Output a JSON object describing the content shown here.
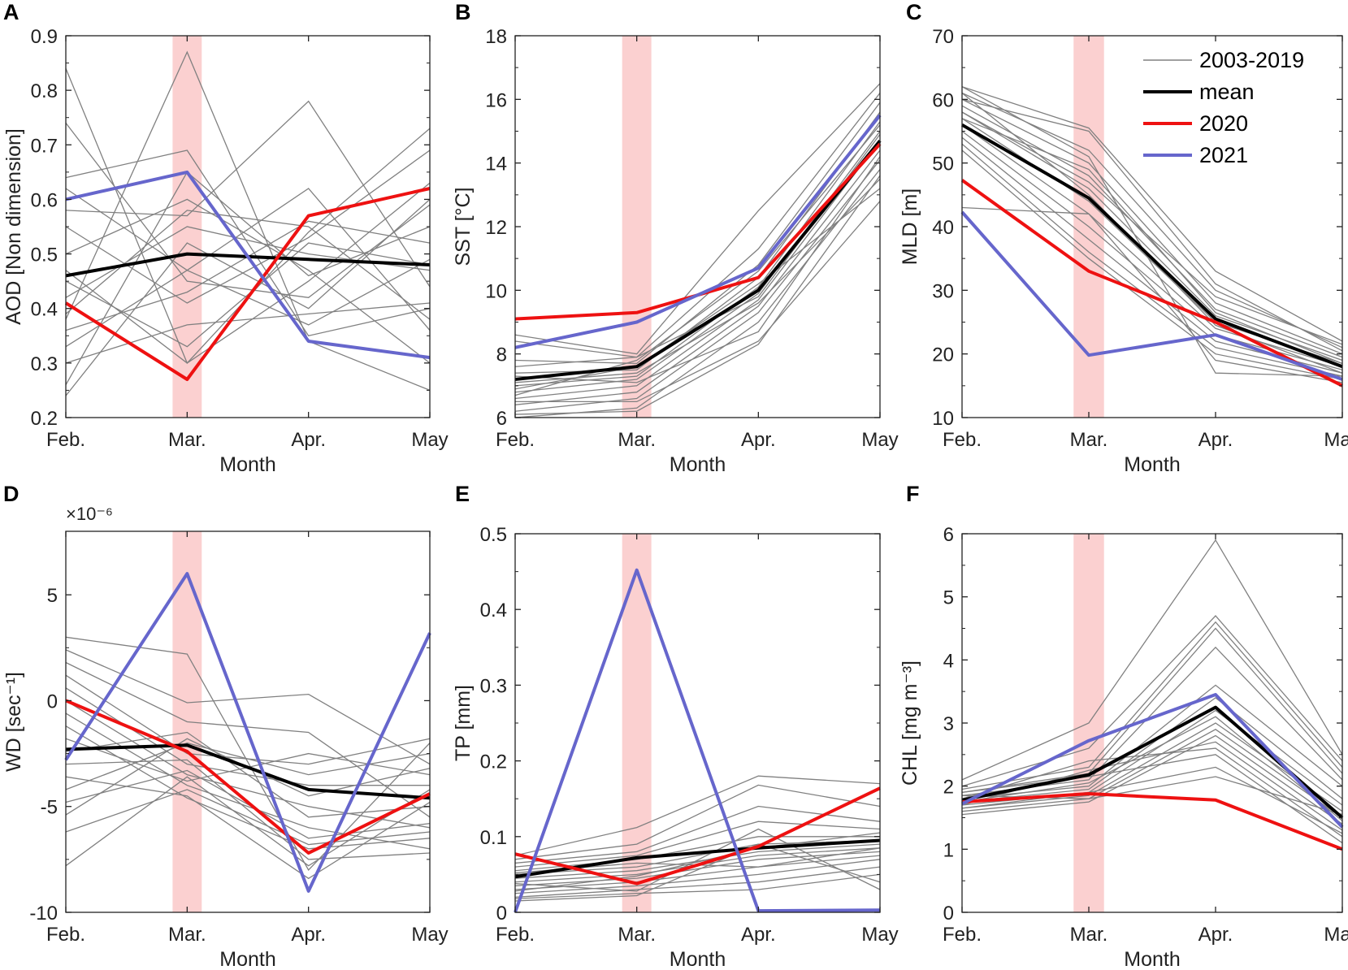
{
  "legend": {
    "items": [
      {
        "label": "2003-2019",
        "color": "#808080"
      },
      {
        "label": "mean",
        "color": "#000000"
      },
      {
        "label": "2020",
        "color": "#ee1111"
      },
      {
        "label": "2021",
        "color": "#6666cc"
      }
    ]
  },
  "colors": {
    "highlight": "#fbd0d0",
    "grey": "#808080",
    "mean": "#000000",
    "y2020": "#ee1111",
    "y2021": "#6666cc"
  },
  "chart_data": [
    {
      "type": "line",
      "panel": "A",
      "ylabel": "AOD [Non dimension]",
      "xlabel": "Month",
      "categories": [
        "Feb.",
        "Mar.",
        "Apr.",
        "May"
      ],
      "ylim": [
        0.2,
        0.9
      ],
      "yticks": [
        0.2,
        0.3,
        0.4,
        0.5,
        0.6,
        0.7,
        0.8,
        0.9
      ],
      "ytick_labels": [
        "0.2",
        "0.3",
        "0.4",
        "0.5",
        "0.6",
        "0.7",
        "0.8",
        "0.9"
      ],
      "highlight_category": "Mar.",
      "series": [
        {
          "name": "mean",
          "values": [
            0.46,
            0.5,
            0.49,
            0.48
          ]
        },
        {
          "name": "2020",
          "values": [
            0.41,
            0.27,
            0.57,
            0.62
          ]
        },
        {
          "name": "2021",
          "values": [
            0.6,
            0.65,
            0.34,
            0.31
          ]
        }
      ],
      "background_series": [
        [
          0.84,
          0.3,
          0.54,
          0.73
        ],
        [
          0.74,
          0.45,
          0.42,
          0.59
        ],
        [
          0.64,
          0.69,
          0.35,
          0.4
        ],
        [
          0.58,
          0.57,
          0.78,
          0.44
        ],
        [
          0.55,
          0.41,
          0.53,
          0.69
        ],
        [
          0.38,
          0.87,
          0.34,
          0.25
        ],
        [
          0.33,
          0.47,
          0.62,
          0.36
        ],
        [
          0.26,
          0.65,
          0.46,
          0.55
        ],
        [
          0.47,
          0.3,
          0.45,
          0.63
        ],
        [
          0.36,
          0.43,
          0.56,
          0.52
        ],
        [
          0.42,
          0.55,
          0.5,
          0.47
        ],
        [
          0.3,
          0.37,
          0.39,
          0.41
        ],
        [
          0.5,
          0.6,
          0.47,
          0.3
        ],
        [
          0.24,
          0.52,
          0.4,
          0.6
        ],
        [
          0.45,
          0.33,
          0.52,
          0.48
        ],
        [
          0.62,
          0.47,
          0.37,
          0.49
        ],
        [
          0.39,
          0.58,
          0.55,
          0.38
        ]
      ]
    },
    {
      "type": "line",
      "panel": "B",
      "ylabel": "SST [°C]",
      "xlabel": "Month",
      "categories": [
        "Feb.",
        "Mar.",
        "Apr.",
        "May"
      ],
      "ylim": [
        6,
        18
      ],
      "yticks": [
        6,
        8,
        10,
        12,
        14,
        16,
        18
      ],
      "ytick_labels": [
        "6",
        "8",
        "10",
        "12",
        "14",
        "16",
        "18"
      ],
      "highlight_category": "Mar.",
      "series": [
        {
          "name": "mean",
          "values": [
            7.2,
            7.6,
            10.0,
            14.7
          ]
        },
        {
          "name": "2020",
          "values": [
            9.1,
            9.3,
            10.4,
            14.6
          ]
        },
        {
          "name": "2021",
          "values": [
            8.2,
            9.0,
            10.7,
            15.5
          ]
        }
      ],
      "background_series": [
        [
          8.6,
          8.0,
          12.5,
          16.5
        ],
        [
          8.4,
          7.9,
          11.3,
          16.2
        ],
        [
          7.8,
          7.7,
          10.8,
          15.9
        ],
        [
          7.4,
          7.5,
          10.4,
          15.6
        ],
        [
          7.0,
          7.3,
          10.1,
          15.3
        ],
        [
          6.8,
          7.2,
          9.9,
          15.0
        ],
        [
          6.6,
          7.0,
          9.7,
          14.7
        ],
        [
          6.4,
          6.8,
          9.5,
          14.4
        ],
        [
          6.2,
          6.6,
          9.3,
          14.1
        ],
        [
          6.0,
          6.3,
          9.0,
          13.8
        ],
        [
          7.1,
          7.4,
          9.6,
          13.5
        ],
        [
          6.9,
          7.6,
          10.2,
          13.2
        ],
        [
          7.3,
          7.1,
          8.7,
          14.2
        ],
        [
          6.5,
          6.5,
          8.4,
          12.8
        ],
        [
          6.7,
          7.8,
          10.6,
          15.2
        ],
        [
          7.6,
          7.9,
          9.8,
          14.9
        ],
        [
          6.1,
          6.2,
          8.3,
          13.6
        ]
      ]
    },
    {
      "type": "line",
      "panel": "C",
      "ylabel": "MLD [m]",
      "xlabel": "Month",
      "categories": [
        "Feb.",
        "Mar.",
        "Apr.",
        "May"
      ],
      "ylim": [
        10,
        70
      ],
      "yticks": [
        10,
        20,
        30,
        40,
        50,
        60,
        70
      ],
      "ytick_labels": [
        "10",
        "20",
        "30",
        "40",
        "50",
        "60",
        "70"
      ],
      "highlight_category": "Mar.",
      "series": [
        {
          "name": "mean",
          "values": [
            56,
            44.5,
            25.5,
            18
          ]
        },
        {
          "name": "2020",
          "values": [
            47.3,
            33,
            25,
            15
          ]
        },
        {
          "name": "2021",
          "values": [
            42.3,
            19.8,
            23,
            16
          ]
        }
      ],
      "background_series": [
        [
          62,
          55.5,
          33,
          22
        ],
        [
          61,
          52,
          30,
          21
        ],
        [
          60,
          50,
          28,
          20
        ],
        [
          59,
          48,
          27,
          19.5
        ],
        [
          58,
          46,
          26,
          19
        ],
        [
          57,
          44,
          25,
          18.5
        ],
        [
          56,
          42,
          24,
          18
        ],
        [
          55,
          40,
          23,
          17.5
        ],
        [
          54,
          38,
          22,
          17
        ],
        [
          53,
          36,
          21,
          16.5
        ],
        [
          52,
          35,
          20,
          16
        ],
        [
          43,
          42,
          19,
          15.5
        ],
        [
          62,
          51,
          17,
          16.5
        ],
        [
          60,
          55,
          31,
          20.5
        ],
        [
          58,
          47,
          29,
          21.5
        ],
        [
          61,
          45,
          24.5,
          17
        ],
        [
          57,
          49,
          26.5,
          18.5
        ]
      ]
    },
    {
      "type": "line",
      "panel": "D",
      "ylabel": "WD [sec⁻¹]",
      "xlabel": "Month",
      "categories": [
        "Feb.",
        "Mar.",
        "Apr.",
        "May"
      ],
      "ylim": [
        -10,
        8
      ],
      "yticks": [
        -10,
        -5,
        0,
        5
      ],
      "ytick_labels": [
        "-10",
        "-5",
        "0",
        "5"
      ],
      "exponent_label": "×10⁻⁶",
      "highlight_category": "Mar.",
      "series": [
        {
          "name": "mean",
          "values": [
            -2.3,
            -2.1,
            -4.2,
            -4.6
          ]
        },
        {
          "name": "2020",
          "values": [
            0,
            -2.4,
            -7.2,
            -4.4
          ]
        },
        {
          "name": "2021",
          "values": [
            -2.8,
            6.0,
            -9.0,
            3.2
          ]
        }
      ],
      "background_series": [
        [
          3.0,
          2.2,
          -8.0,
          -2.0
        ],
        [
          2.4,
          -0.1,
          0.3,
          -3.0
        ],
        [
          1.8,
          -1.0,
          -1.5,
          -5.5
        ],
        [
          1.2,
          -2.5,
          -3.0,
          -1.8
        ],
        [
          0.6,
          -3.0,
          -4.0,
          -4.0
        ],
        [
          0.0,
          -3.5,
          -5.0,
          -6.0
        ],
        [
          -0.6,
          -4.0,
          -6.0,
          -7.0
        ],
        [
          -1.2,
          -4.6,
          -7.0,
          -6.5
        ],
        [
          -1.8,
          -3.8,
          -2.5,
          -3.5
        ],
        [
          -2.4,
          -1.5,
          -5.5,
          -5.0
        ],
        [
          -3.0,
          -2.8,
          -7.5,
          -7.2
        ],
        [
          -3.6,
          -4.5,
          -8.4,
          -4.8
        ],
        [
          -4.2,
          -2.0,
          -3.5,
          -2.5
        ],
        [
          -4.8,
          -3.3,
          -6.5,
          -5.8
        ],
        [
          -5.4,
          -1.8,
          -4.5,
          -3.2
        ],
        [
          -6.2,
          -4.2,
          -6.8,
          -6.2
        ],
        [
          -7.8,
          -3.6,
          -7.8,
          -4.2
        ]
      ]
    },
    {
      "type": "line",
      "panel": "E",
      "ylabel": "TP [mm]",
      "xlabel": "Month",
      "categories": [
        "Feb.",
        "Mar.",
        "Apr.",
        "May"
      ],
      "ylim": [
        0,
        0.5
      ],
      "yticks": [
        0,
        0.1,
        0.2,
        0.3,
        0.4,
        0.5
      ],
      "ytick_labels": [
        "0",
        "0.1",
        "0.2",
        "0.3",
        "0.4",
        "0.5"
      ],
      "highlight_category": "Mar.",
      "series": [
        {
          "name": "mean",
          "values": [
            0.047,
            0.072,
            0.085,
            0.095
          ]
        },
        {
          "name": "2020",
          "values": [
            0.077,
            0.038,
            0.087,
            0.164
          ]
        },
        {
          "name": "2021",
          "values": [
            0.0,
            0.452,
            0.002,
            0.003
          ]
        }
      ],
      "background_series": [
        [
          0.075,
          0.112,
          0.18,
          0.17
        ],
        [
          0.07,
          0.09,
          0.168,
          0.14
        ],
        [
          0.065,
          0.08,
          0.14,
          0.12
        ],
        [
          0.06,
          0.075,
          0.12,
          0.11
        ],
        [
          0.055,
          0.07,
          0.1,
          0.1
        ],
        [
          0.05,
          0.06,
          0.09,
          0.095
        ],
        [
          0.045,
          0.055,
          0.08,
          0.09
        ],
        [
          0.04,
          0.05,
          0.075,
          0.085
        ],
        [
          0.035,
          0.045,
          0.07,
          0.08
        ],
        [
          0.03,
          0.04,
          0.06,
          0.075
        ],
        [
          0.025,
          0.035,
          0.05,
          0.07
        ],
        [
          0.02,
          0.03,
          0.04,
          0.06
        ],
        [
          0.018,
          0.025,
          0.03,
          0.05
        ],
        [
          0.015,
          0.022,
          0.09,
          0.04
        ],
        [
          0.038,
          0.028,
          0.11,
          0.03
        ],
        [
          0.052,
          0.065,
          0.06,
          0.085
        ],
        [
          0.028,
          0.048,
          0.085,
          0.105
        ]
      ]
    },
    {
      "type": "line",
      "panel": "F",
      "ylabel": "CHL [mg m⁻³]",
      "xlabel": "Month",
      "categories": [
        "Feb.",
        "Mar.",
        "Apr.",
        "May"
      ],
      "ylim": [
        0,
        6
      ],
      "yticks": [
        0,
        1,
        2,
        3,
        4,
        5,
        6
      ],
      "ytick_labels": [
        "0",
        "1",
        "2",
        "3",
        "4",
        "5",
        "6"
      ],
      "highlight_category": "Mar.",
      "series": [
        {
          "name": "mean",
          "values": [
            1.78,
            2.18,
            3.25,
            1.5
          ]
        },
        {
          "name": "2020",
          "values": [
            1.75,
            1.88,
            1.78,
            1.0
          ]
        },
        {
          "name": "2021",
          "values": [
            1.72,
            2.72,
            3.45,
            1.35
          ]
        }
      ],
      "background_series": [
        [
          2.1,
          3.0,
          5.9,
          2.5
        ],
        [
          2.0,
          2.6,
          4.7,
          2.4
        ],
        [
          1.95,
          2.3,
          4.6,
          2.3
        ],
        [
          1.9,
          2.2,
          4.5,
          2.2
        ],
        [
          1.85,
          2.1,
          4.2,
          2.1
        ],
        [
          1.8,
          2.0,
          3.6,
          2.0
        ],
        [
          1.75,
          1.95,
          3.4,
          1.8
        ],
        [
          1.7,
          1.9,
          3.2,
          1.7
        ],
        [
          1.65,
          1.85,
          3.0,
          1.6
        ],
        [
          1.6,
          1.8,
          2.9,
          1.5
        ],
        [
          1.55,
          1.75,
          2.8,
          1.4
        ],
        [
          1.7,
          2.25,
          2.7,
          1.3
        ],
        [
          1.8,
          2.4,
          2.6,
          1.2
        ],
        [
          1.9,
          2.15,
          2.5,
          1.1
        ],
        [
          1.65,
          1.9,
          2.3,
          1.25
        ],
        [
          1.75,
          2.05,
          3.1,
          1.45
        ],
        [
          1.85,
          1.8,
          2.15,
          1.55
        ]
      ]
    }
  ]
}
